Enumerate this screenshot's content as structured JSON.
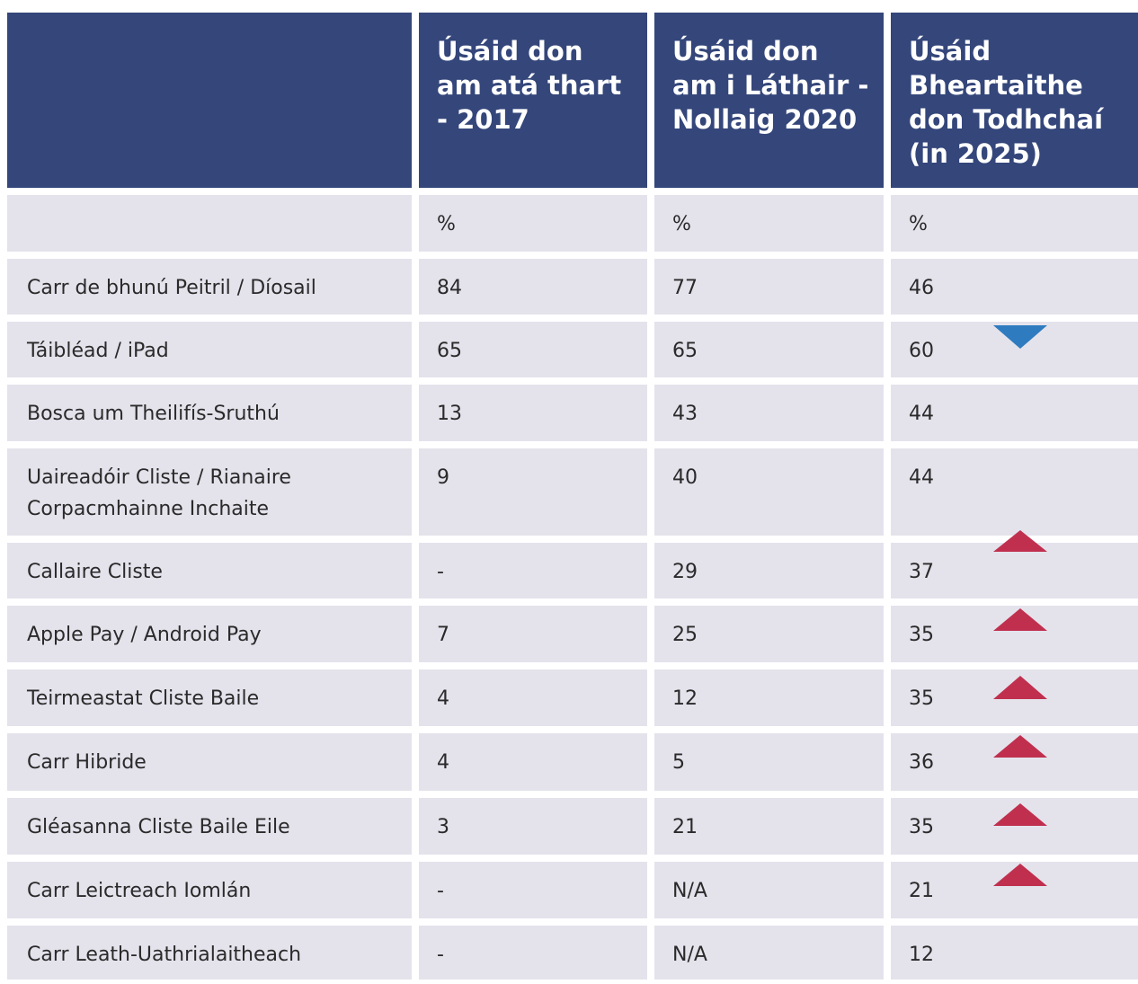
{
  "table": {
    "header": [
      "Úsáid don am atá thart - 2017",
      "Úsáid don am i Láthair -Nollaig 2020",
      "Úsáid Bheartaithe don Todhchaí (in 2025)"
    ],
    "units": [
      "%",
      "%",
      "%"
    ],
    "rows": [
      [
        "Carr de bhunú Peitril / Díosail",
        "84",
        "77",
        "46"
      ],
      [
        "Táibléad / iPad",
        "65",
        "65",
        "60"
      ],
      [
        "Bosca um Theilifís-Sruthú",
        "13",
        "43",
        "44"
      ],
      [
        "Uaireadóir Cliste / Rianaire Corpacmhainne Inchaite",
        "9",
        "40",
        "44"
      ],
      [
        "Callaire Cliste",
        "-",
        "29",
        "37"
      ],
      [
        "Apple Pay / Android Pay",
        "7",
        "25",
        "35"
      ],
      [
        "Teirmeastat Cliste Baile",
        "4",
        "12",
        "35"
      ],
      [
        "Carr Hibride",
        "4",
        "5",
        "36"
      ],
      [
        "Gléasanna Cliste Baile Eile",
        "3",
        "21",
        "35"
      ],
      [
        "Carr Leictreach Iomlán",
        "-",
        "N/A",
        "21"
      ],
      [
        "Carr Leath-Uathrialaitheach",
        "-",
        "N/A",
        "12"
      ]
    ]
  }
}
